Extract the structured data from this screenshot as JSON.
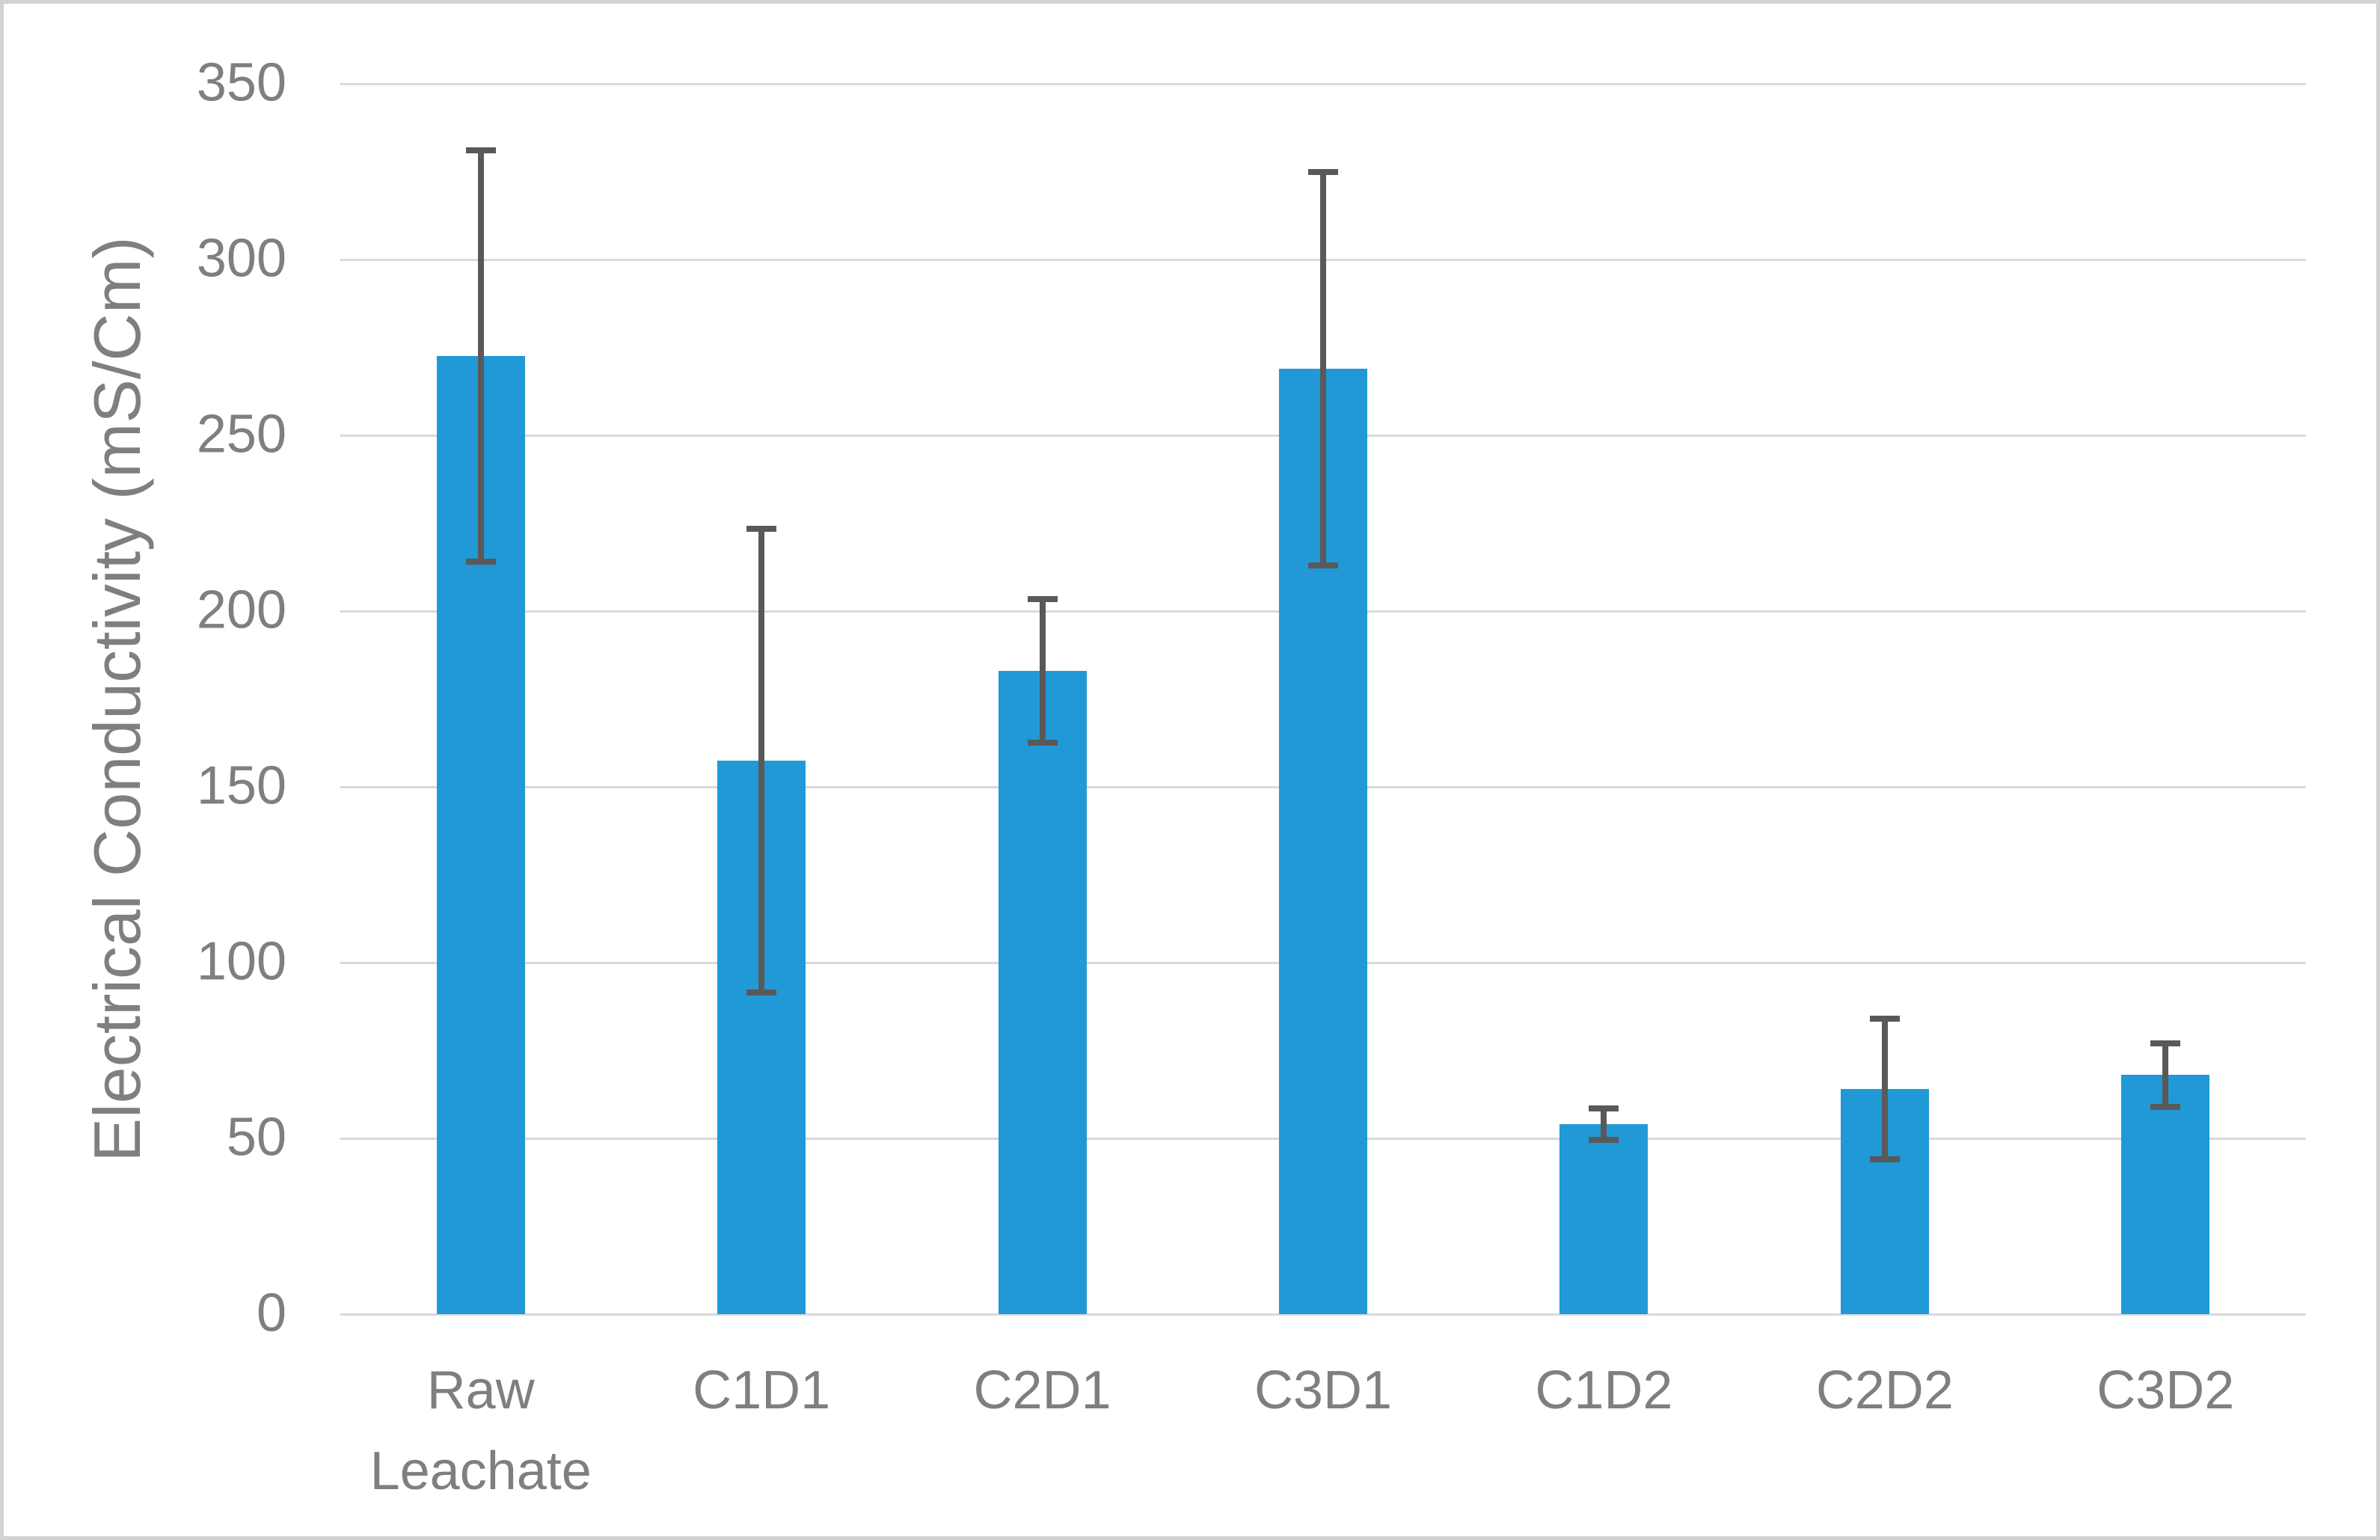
{
  "chart_data": {
    "type": "bar",
    "title": "",
    "xlabel": "",
    "ylabel": "Electrical Conductivity (mS/Cm)",
    "categories": [
      "Raw Leachate",
      "C1D1",
      "C2D1",
      "C3D1",
      "C1D2",
      "C2D2",
      "C3D2"
    ],
    "series": [
      {
        "name": "Electrical Conductivity",
        "values": [
          272.5,
          157.5,
          183,
          269,
          54,
          64,
          68
        ],
        "error_bars_plus": [
          58.5,
          66,
          20.5,
          56,
          4.5,
          20,
          9
        ],
        "error_bars_minus": [
          58.5,
          66,
          20.5,
          56,
          4.5,
          20,
          9
        ]
      }
    ],
    "ylim": [
      0,
      350
    ],
    "yticks": [
      0,
      50,
      100,
      150,
      200,
      250,
      300,
      350
    ],
    "grid": "horizontal-on",
    "legend": "none",
    "colors": {
      "bar": "#2099d6",
      "error_bar": "#595959",
      "gridline": "#d9d9d9",
      "axis_text": "#7f7f7f",
      "chart_border": "#d2d2d2",
      "background": "#ffffff"
    }
  }
}
